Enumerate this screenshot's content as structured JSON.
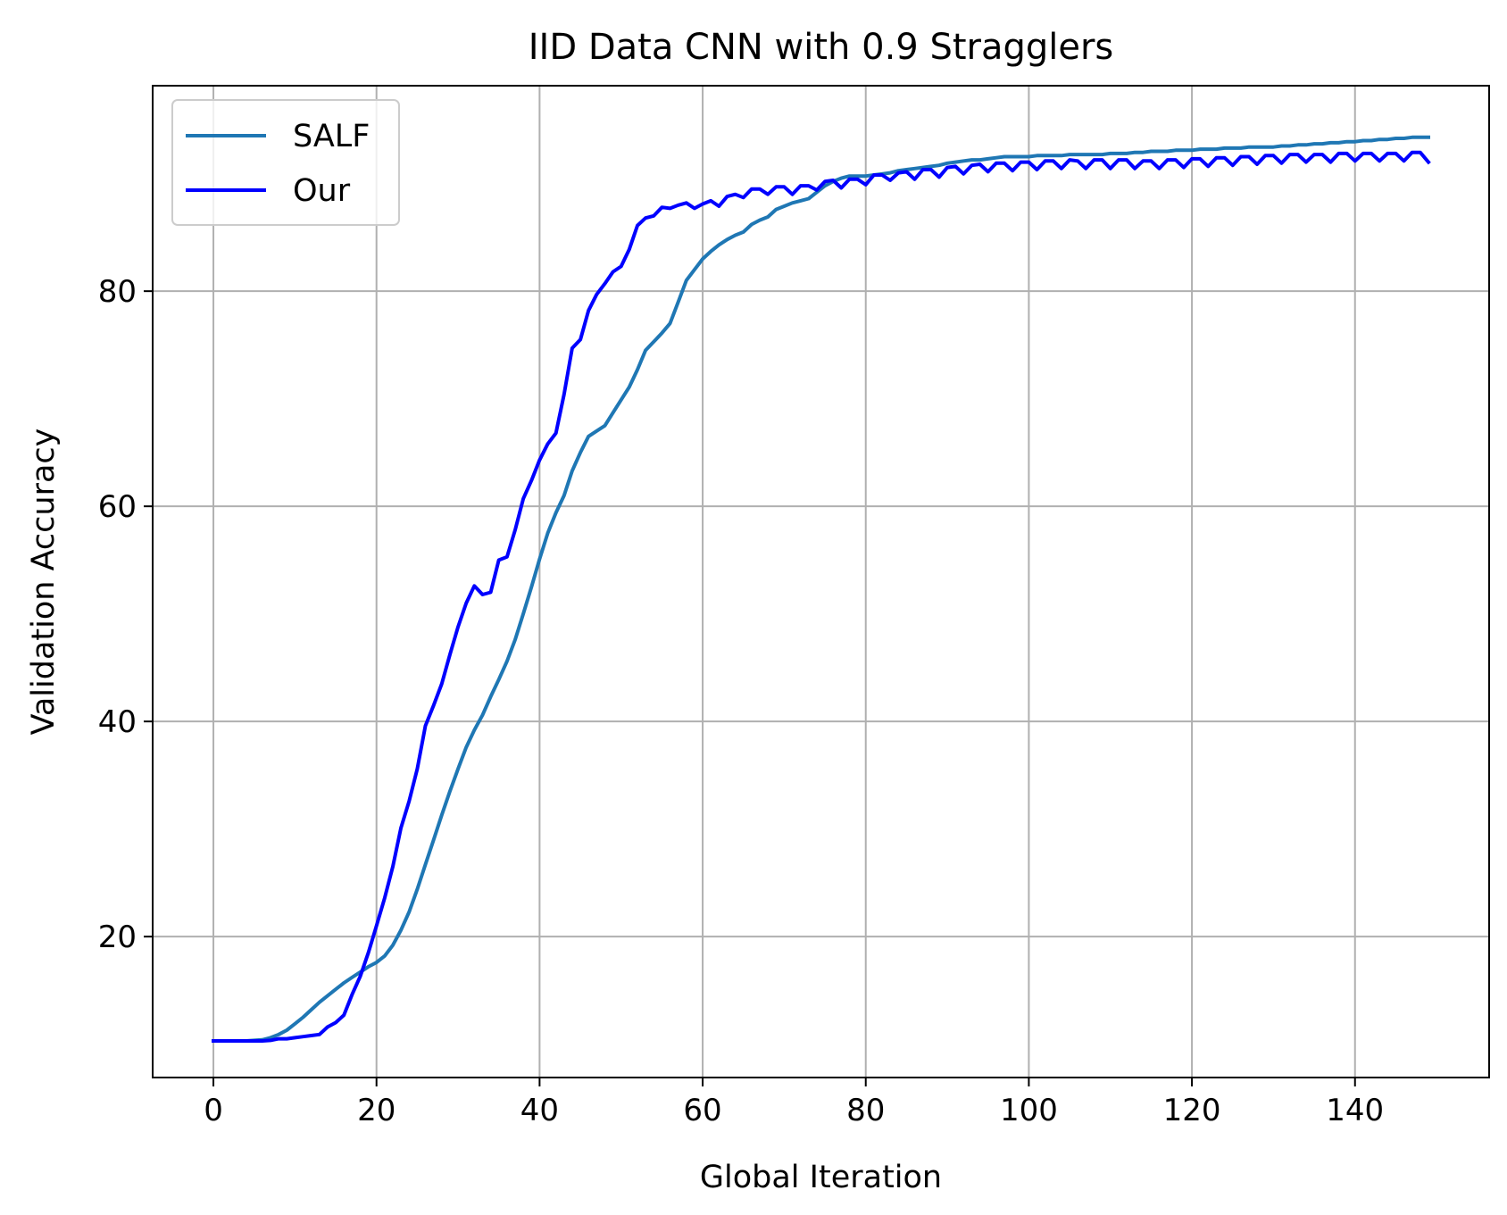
{
  "chart_data": {
    "type": "line",
    "title": "IID Data CNN with 0.9 Stragglers",
    "xlabel": "Global Iteration",
    "ylabel": "Validation Accuracy",
    "xlim": [
      -7.45,
      156.45
    ],
    "ylim": [
      6.9,
      99.1
    ],
    "xticks": [
      0,
      20,
      40,
      60,
      80,
      100,
      120,
      140
    ],
    "yticks": [
      20,
      40,
      60,
      80
    ],
    "grid": true,
    "legend_position": "top-left",
    "series": [
      {
        "name": "SALF",
        "color": "#1f77b4",
        "x": [
          0,
          1,
          2,
          3,
          4,
          5,
          6,
          7,
          8,
          9,
          10,
          11,
          12,
          13,
          14,
          15,
          16,
          17,
          18,
          19,
          20,
          21,
          22,
          23,
          24,
          25,
          26,
          27,
          28,
          29,
          30,
          31,
          32,
          33,
          34,
          35,
          36,
          37,
          38,
          39,
          40,
          41,
          42,
          43,
          44,
          45,
          46,
          47,
          48,
          49,
          50,
          51,
          52,
          53,
          54,
          55,
          56,
          57,
          58,
          59,
          60,
          61,
          62,
          63,
          64,
          65,
          66,
          67,
          68,
          69,
          70,
          71,
          72,
          73,
          74,
          75,
          76,
          77,
          78,
          79,
          80,
          81,
          82,
          83,
          84,
          85,
          86,
          87,
          88,
          89,
          90,
          91,
          92,
          93,
          94,
          95,
          96,
          97,
          98,
          99,
          100,
          101,
          102,
          103,
          104,
          105,
          106,
          107,
          108,
          109,
          110,
          111,
          112,
          113,
          114,
          115,
          116,
          117,
          118,
          119,
          120,
          121,
          122,
          123,
          124,
          125,
          126,
          127,
          128,
          129,
          130,
          131,
          132,
          133,
          134,
          135,
          136,
          137,
          138,
          139,
          140,
          141,
          142,
          143,
          144,
          145,
          146,
          147,
          148,
          149
        ],
        "y": [
          10.3,
          10.3,
          10.3,
          10.3,
          10.3,
          10.35,
          10.4,
          10.6,
          10.9,
          11.3,
          11.9,
          12.5,
          13.2,
          13.9,
          14.5,
          15.1,
          15.7,
          16.2,
          16.7,
          17.2,
          17.6,
          18.2,
          19.2,
          20.6,
          22.3,
          24.4,
          26.7,
          29.0,
          31.3,
          33.5,
          35.6,
          37.6,
          39.2,
          40.6,
          42.3,
          43.9,
          45.6,
          47.6,
          50.0,
          52.5,
          55.1,
          57.5,
          59.4,
          61.0,
          63.3,
          65.0,
          66.5,
          67.0,
          67.5,
          68.7,
          69.9,
          71.1,
          72.7,
          74.5,
          75.3,
          76.1,
          77.0,
          79.0,
          81.0,
          82.0,
          83.0,
          83.7,
          84.3,
          84.8,
          85.2,
          85.5,
          86.2,
          86.6,
          86.9,
          87.6,
          87.9,
          88.2,
          88.4,
          88.6,
          89.2,
          89.8,
          90.2,
          90.5,
          90.7,
          90.7,
          90.7,
          90.8,
          90.9,
          91.0,
          91.2,
          91.3,
          91.4,
          91.5,
          91.6,
          91.7,
          91.9,
          92.0,
          92.1,
          92.2,
          92.2,
          92.3,
          92.4,
          92.5,
          92.5,
          92.5,
          92.5,
          92.6,
          92.6,
          92.6,
          92.6,
          92.7,
          92.7,
          92.7,
          92.7,
          92.7,
          92.8,
          92.8,
          92.8,
          92.9,
          92.9,
          93.0,
          93.0,
          93.0,
          93.1,
          93.1,
          93.1,
          93.2,
          93.2,
          93.2,
          93.3,
          93.3,
          93.3,
          93.4,
          93.4,
          93.4,
          93.4,
          93.5,
          93.5,
          93.6,
          93.6,
          93.7,
          93.7,
          93.8,
          93.8,
          93.9,
          93.9,
          94.0,
          94.0,
          94.1,
          94.1,
          94.2,
          94.2,
          94.3,
          94.3,
          94.3
        ]
      },
      {
        "name": "Our",
        "color": "#0000ff",
        "x": [
          0,
          1,
          2,
          3,
          4,
          5,
          6,
          7,
          8,
          9,
          10,
          11,
          12,
          13,
          14,
          15,
          16,
          17,
          18,
          19,
          20,
          21,
          22,
          23,
          24,
          25,
          26,
          27,
          28,
          29,
          30,
          31,
          32,
          33,
          34,
          35,
          36,
          37,
          38,
          39,
          40,
          41,
          42,
          43,
          44,
          45,
          46,
          47,
          48,
          49,
          50,
          51,
          52,
          53,
          54,
          55,
          56,
          57,
          58,
          59,
          60,
          61,
          62,
          63,
          64,
          65,
          66,
          67,
          68,
          69,
          70,
          71,
          72,
          73,
          74,
          75,
          76,
          77,
          78,
          79,
          80,
          81,
          82,
          83,
          84,
          85,
          86,
          87,
          88,
          89,
          90,
          91,
          92,
          93,
          94,
          95,
          96,
          97,
          98,
          99,
          100,
          101,
          102,
          103,
          104,
          105,
          106,
          107,
          108,
          109,
          110,
          111,
          112,
          113,
          114,
          115,
          116,
          117,
          118,
          119,
          120,
          121,
          122,
          123,
          124,
          125,
          126,
          127,
          128,
          129,
          130,
          131,
          132,
          133,
          134,
          135,
          136,
          137,
          138,
          139,
          140,
          141,
          142,
          143,
          144,
          145,
          146,
          147,
          148,
          149
        ],
        "y": [
          10.3,
          10.3,
          10.3,
          10.3,
          10.3,
          10.3,
          10.3,
          10.35,
          10.5,
          10.5,
          10.6,
          10.7,
          10.8,
          10.9,
          11.6,
          12.0,
          12.7,
          14.6,
          16.3,
          18.5,
          21.0,
          23.6,
          26.5,
          30.1,
          32.6,
          35.6,
          39.6,
          41.5,
          43.5,
          46.2,
          48.8,
          51.0,
          52.6,
          51.8,
          52.0,
          55.0,
          55.3,
          57.8,
          60.7,
          62.4,
          64.3,
          65.8,
          66.8,
          70.4,
          74.7,
          75.5,
          78.2,
          79.7,
          80.7,
          81.8,
          82.3,
          83.9,
          86.1,
          86.8,
          87.0,
          87.8,
          87.7,
          88.0,
          88.2,
          87.7,
          88.1,
          88.4,
          87.9,
          88.8,
          89.0,
          88.7,
          89.5,
          89.5,
          89.0,
          89.7,
          89.7,
          89.0,
          89.8,
          89.8,
          89.4,
          90.2,
          90.3,
          89.6,
          90.4,
          90.4,
          89.9,
          90.8,
          90.8,
          90.3,
          91.0,
          91.1,
          90.4,
          91.3,
          91.3,
          90.6,
          91.5,
          91.6,
          90.9,
          91.7,
          91.8,
          91.1,
          91.9,
          91.9,
          91.2,
          92.0,
          92.0,
          91.3,
          92.1,
          92.1,
          91.4,
          92.2,
          92.1,
          91.4,
          92.2,
          92.2,
          91.4,
          92.2,
          92.2,
          91.4,
          92.1,
          92.1,
          91.4,
          92.2,
          92.2,
          91.5,
          92.3,
          92.3,
          91.6,
          92.4,
          92.4,
          91.7,
          92.5,
          92.5,
          91.8,
          92.6,
          92.6,
          91.9,
          92.7,
          92.7,
          92.0,
          92.7,
          92.7,
          92.0,
          92.8,
          92.8,
          92.1,
          92.8,
          92.8,
          92.1,
          92.8,
          92.8,
          92.1,
          92.9,
          92.9,
          92.0
        ]
      }
    ]
  }
}
